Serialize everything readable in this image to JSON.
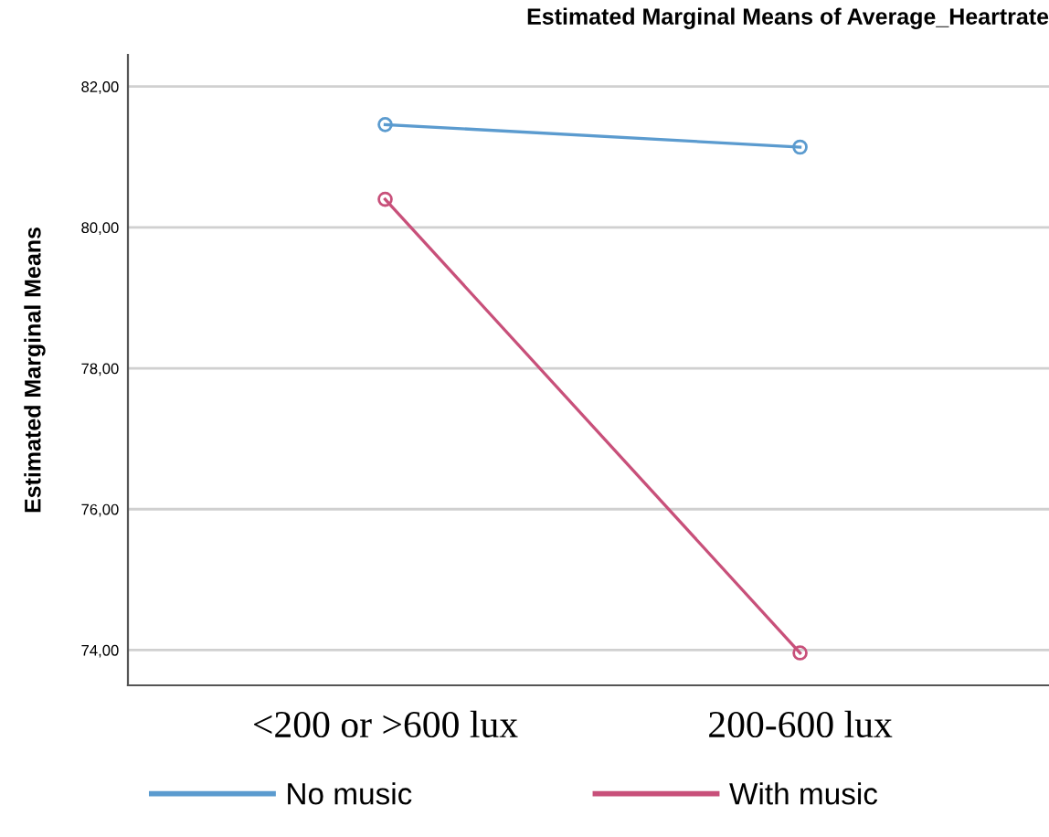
{
  "chart_data": {
    "type": "line",
    "title": "Estimated Marginal Means of Average_Heartrate",
    "ylabel": "Estimated Marginal Means",
    "categories": [
      "<200 or >600 lux",
      "200-600 lux"
    ],
    "series": [
      {
        "name": "No music",
        "color": "#5b9bcf",
        "values": [
          81.46,
          81.14
        ]
      },
      {
        "name": "With music",
        "color": "#c8507a",
        "values": [
          80.4,
          73.96
        ]
      }
    ],
    "ylim": [
      73.5,
      82.45
    ],
    "yticks": [
      {
        "value": 74,
        "label": "74,00"
      },
      {
        "value": 76,
        "label": "76,00"
      },
      {
        "value": 78,
        "label": "78,00"
      },
      {
        "value": 80,
        "label": "80,00"
      },
      {
        "value": 82,
        "label": "82,00"
      }
    ],
    "grid": "y",
    "legend": "bottom",
    "marker": "circle",
    "line_style": "solid"
  }
}
